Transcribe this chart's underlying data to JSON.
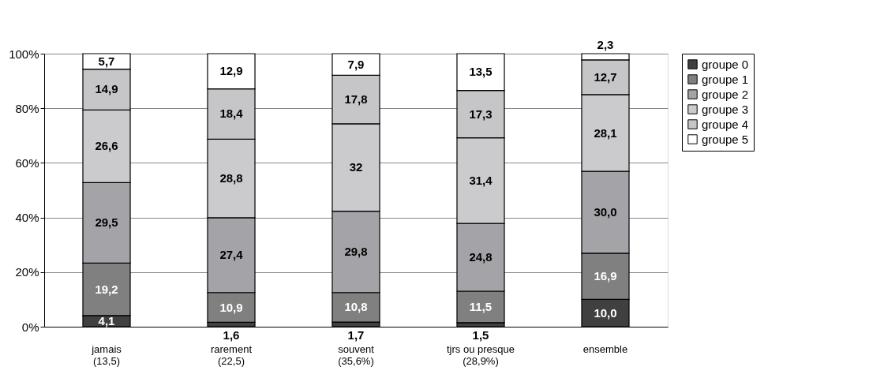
{
  "chart_data": {
    "type": "bar",
    "stacked": true,
    "categories": [
      "jamais\n(13,5)",
      "rarement\n(22,5)",
      "souvent\n(35,6%)",
      "tjrs ou presque\n(28,9%)",
      "ensemble"
    ],
    "series": [
      {
        "name": "groupe 0",
        "color": "#404040",
        "values": [
          4.1,
          1.6,
          1.7,
          1.5,
          10.0
        ],
        "value_labels": [
          "4,1",
          "1,6",
          "1,7",
          "1,5",
          "10,0"
        ]
      },
      {
        "name": "groupe 1",
        "color": "#808080",
        "values": [
          19.2,
          10.9,
          10.8,
          11.5,
          16.9
        ],
        "value_labels": [
          "19,2",
          "10,9",
          "10,8",
          "11,5",
          "16,9"
        ]
      },
      {
        "name": "groupe 2",
        "color": "#a4a4a8",
        "values": [
          29.5,
          27.4,
          29.8,
          24.8,
          30.0
        ],
        "value_labels": [
          "29,5",
          "27,4",
          "29,8",
          "24,8",
          "30,0"
        ]
      },
      {
        "name": "groupe 3",
        "color": "#cbcbcd",
        "values": [
          26.6,
          28.8,
          32,
          31.4,
          28.1
        ],
        "value_labels": [
          "26,6",
          "28,8",
          "32",
          "31,4",
          "28,1"
        ]
      },
      {
        "name": "groupe 4",
        "color": "#c6c6c8",
        "values": [
          14.9,
          18.4,
          17.8,
          17.3,
          12.7
        ],
        "value_labels": [
          "14,9",
          "18,4",
          "17,8",
          "17,3",
          "12,7"
        ]
      },
      {
        "name": "groupe 5",
        "color": "#ffffff",
        "values": [
          5.7,
          12.9,
          7.9,
          13.5,
          2.3
        ],
        "value_labels": [
          "5,7",
          "12,9",
          "7,9",
          "13,5",
          "2,3"
        ]
      }
    ],
    "ylim": [
      0,
      100
    ],
    "yticks": [
      {
        "value": 0,
        "label": "0%"
      },
      {
        "value": 20,
        "label": "20%"
      },
      {
        "value": 40,
        "label": "40%"
      },
      {
        "value": 60,
        "label": "60%"
      },
      {
        "value": 80,
        "label": "80%"
      },
      {
        "value": 100,
        "label": "100%"
      }
    ],
    "grid": "y",
    "legend": "right"
  }
}
